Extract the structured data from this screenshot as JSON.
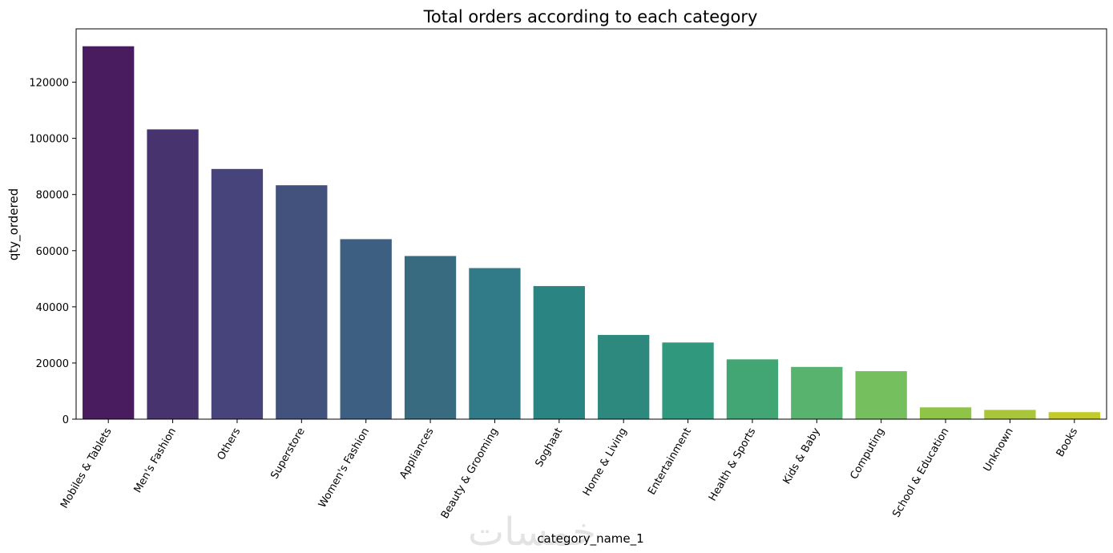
{
  "chart_data": {
    "type": "bar",
    "title": "Total orders according to each category",
    "xlabel": "category_name_1",
    "ylabel": "qty_ordered",
    "categories": [
      "Mobiles & Tablets",
      "Men's Fashion",
      "Others",
      "Superstore",
      "Women's Fashion",
      "Appliances",
      "Beauty & Grooming",
      "Soghaat",
      "Home & Living",
      "Entertainment",
      "Health & Sports",
      "Kids & Baby",
      "Computing",
      "School & Education",
      "Unknown",
      "Books"
    ],
    "values": [
      132800,
      103200,
      89100,
      83300,
      64100,
      58100,
      53800,
      47400,
      30000,
      27300,
      21300,
      18600,
      17100,
      4200,
      3300,
      2500
    ],
    "ylim": [
      0,
      139000
    ],
    "yticks": [
      0,
      20000,
      40000,
      60000,
      80000,
      100000,
      120000
    ],
    "ytick_labels": [
      "0",
      "20000",
      "40000",
      "60000",
      "80000",
      "100000",
      "120000"
    ],
    "colors": [
      "#481c5e",
      "#47336e",
      "#47437b",
      "#43527d",
      "#3d5f82",
      "#386b80",
      "#317b89",
      "#2a8582",
      "#2d887d",
      "#30987c",
      "#42a674",
      "#57b36e",
      "#76bf5e",
      "#8fc447",
      "#a9c63a",
      "#c3cb28"
    ],
    "grid": false,
    "legend": "none",
    "watermark": "خمسات"
  }
}
